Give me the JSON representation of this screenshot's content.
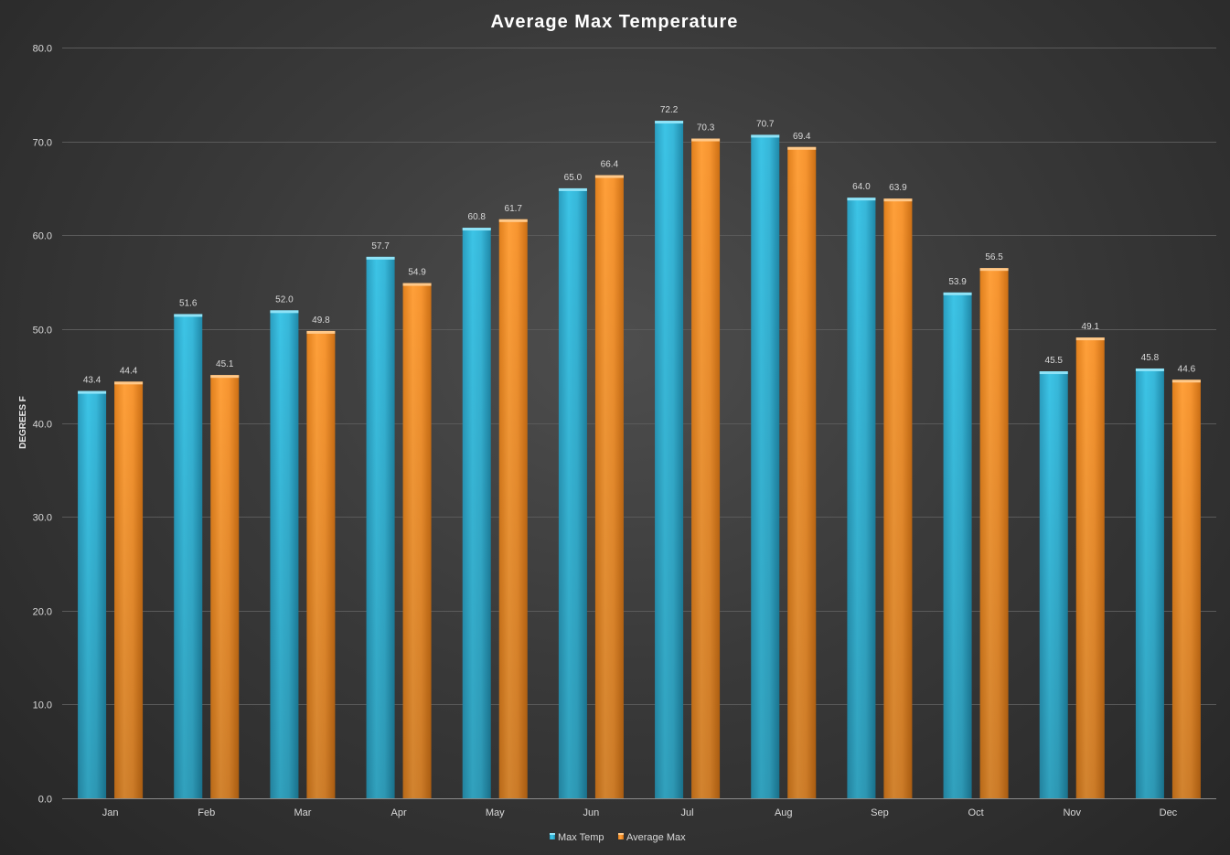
{
  "chart_data": {
    "type": "bar",
    "title": "Average Max Temperature",
    "xlabel": "",
    "ylabel": "DEGREES F",
    "ylim": [
      0,
      80
    ],
    "y_ticks": [
      "0.0",
      "10.0",
      "20.0",
      "30.0",
      "40.0",
      "50.0",
      "60.0",
      "70.0",
      "80.0"
    ],
    "y_tick_values": [
      0,
      10,
      20,
      30,
      40,
      50,
      60,
      70,
      80
    ],
    "grid": true,
    "legend_position": "bottom",
    "categories": [
      "Jan",
      "Feb",
      "Mar",
      "Apr",
      "May",
      "Jun",
      "Jul",
      "Aug",
      "Sep",
      "Oct",
      "Nov",
      "Dec"
    ],
    "series": [
      {
        "name": "Max Temp",
        "color": "#35bde0",
        "values": [
          43.4,
          51.6,
          52.0,
          57.7,
          60.8,
          65.0,
          72.2,
          70.7,
          64.0,
          53.9,
          45.5,
          45.8
        ],
        "labels": [
          "43.4",
          "51.6",
          "52.0",
          "57.7",
          "60.8",
          "65.0",
          "72.2",
          "70.7",
          "64.0",
          "53.9",
          "45.5",
          "45.8"
        ]
      },
      {
        "name": "Average Max",
        "color": "#f7962e",
        "values": [
          44.4,
          45.1,
          49.8,
          54.9,
          61.7,
          66.4,
          70.3,
          69.4,
          63.9,
          56.5,
          49.1,
          44.6
        ],
        "labels": [
          "44.4",
          "45.1",
          "49.8",
          "54.9",
          "61.7",
          "66.4",
          "70.3",
          "69.4",
          "63.9",
          "56.5",
          "49.1",
          "44.6"
        ]
      }
    ]
  }
}
